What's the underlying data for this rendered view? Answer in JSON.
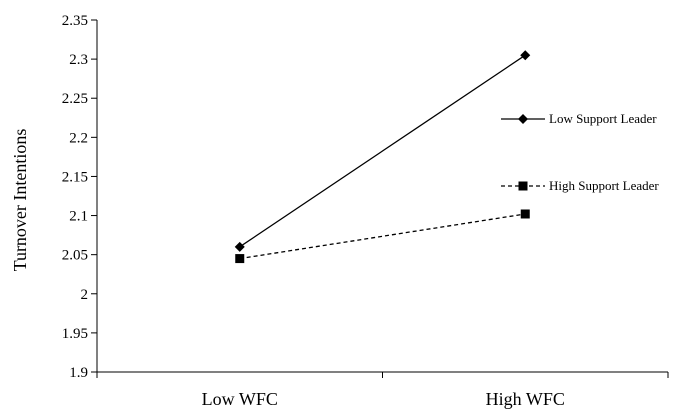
{
  "chart_data": {
    "type": "line",
    "categories": [
      "Low WFC",
      "High WFC"
    ],
    "ylabel": "Turnover Intentions",
    "xlabel": "",
    "ylim": [
      1.9,
      2.35
    ],
    "yticks": [
      "1.9",
      "1.95",
      "2",
      "2.05",
      "2.1",
      "2.15",
      "2.2",
      "2.25",
      "2.3",
      "2.35"
    ],
    "grid": false,
    "legend_position": "right",
    "series": [
      {
        "name": "Low Support Leader",
        "values": [
          2.06,
          2.305
        ],
        "line_style": "solid",
        "marker": "diamond",
        "color": "#000000"
      },
      {
        "name": "High Support Leader",
        "values": [
          2.045,
          2.102
        ],
        "line_style": "dashed",
        "marker": "square",
        "color": "#000000"
      }
    ]
  }
}
